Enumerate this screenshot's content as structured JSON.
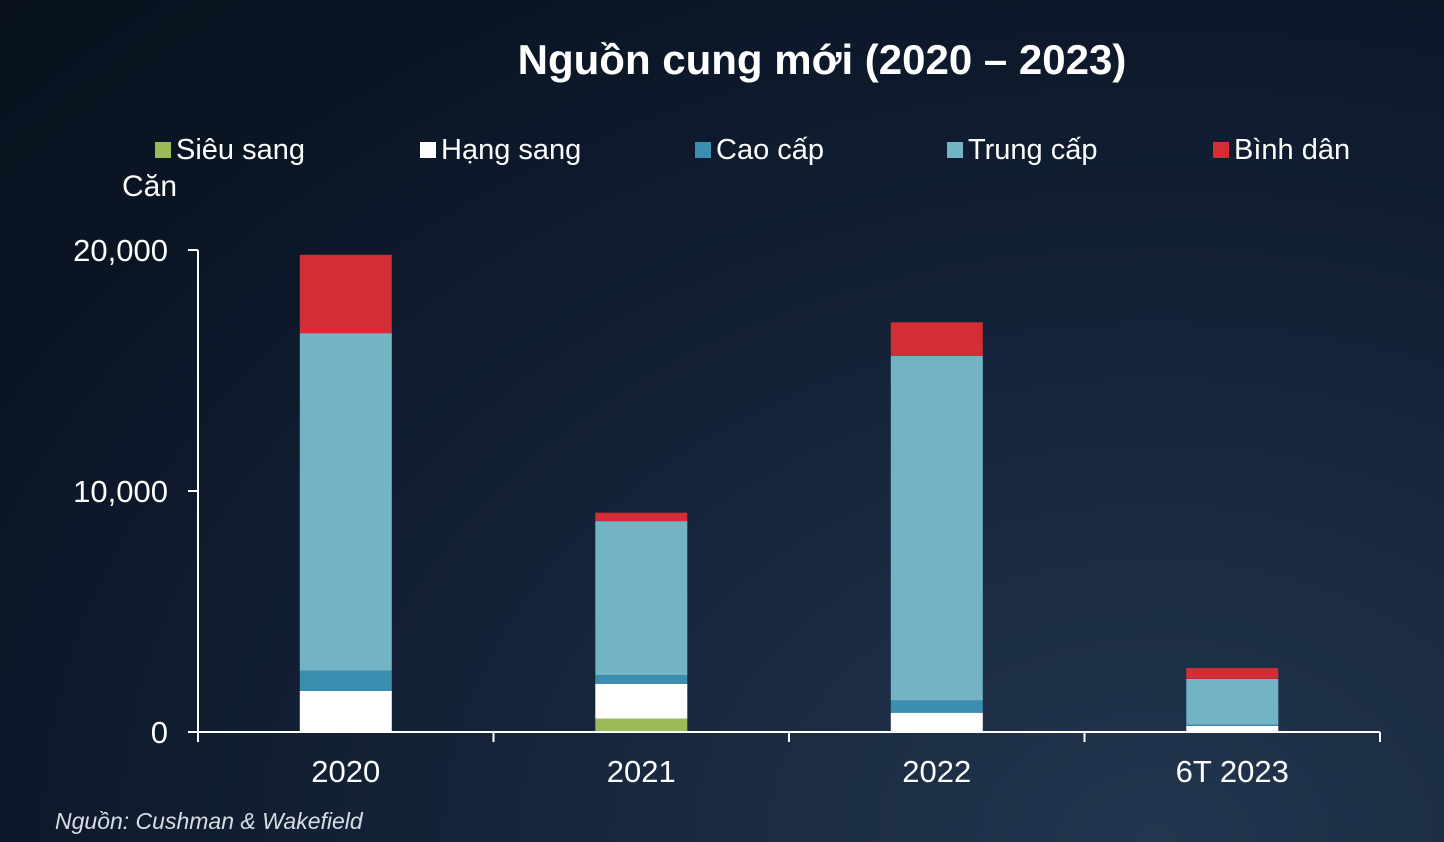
{
  "chart_data": {
    "type": "bar",
    "stacked": true,
    "title": "Nguồn cung mới (2020 – 2023)",
    "ylabel": "Căn",
    "xlabel": "",
    "source": "Nguồn: Cushman & Wakefield",
    "categories": [
      "2020",
      "2021",
      "2022",
      "6T 2023"
    ],
    "ylim": [
      0,
      20000
    ],
    "yticks": [
      {
        "value": 0,
        "label": "0"
      },
      {
        "value": 10000,
        "label": "10,000"
      },
      {
        "value": 20000,
        "label": "20,000"
      }
    ],
    "legend_position": "top",
    "grid": false,
    "series": [
      {
        "name": "Siêu sang",
        "color": "#9bbb59",
        "values": [
          0,
          550,
          0,
          0
        ]
      },
      {
        "name": "Hạng sang",
        "color": "#ffffff",
        "values": [
          1700,
          1450,
          800,
          250
        ]
      },
      {
        "name": "Cao cấp",
        "color": "#3a8eb0",
        "values": [
          850,
          350,
          500,
          50
        ]
      },
      {
        "name": "Trung cấp",
        "color": "#72b3c4",
        "values": [
          14000,
          6400,
          14300,
          1900
        ]
      },
      {
        "name": "Bình dân",
        "color": "#d32d36",
        "values": [
          3250,
          350,
          1400,
          450
        ]
      }
    ]
  }
}
